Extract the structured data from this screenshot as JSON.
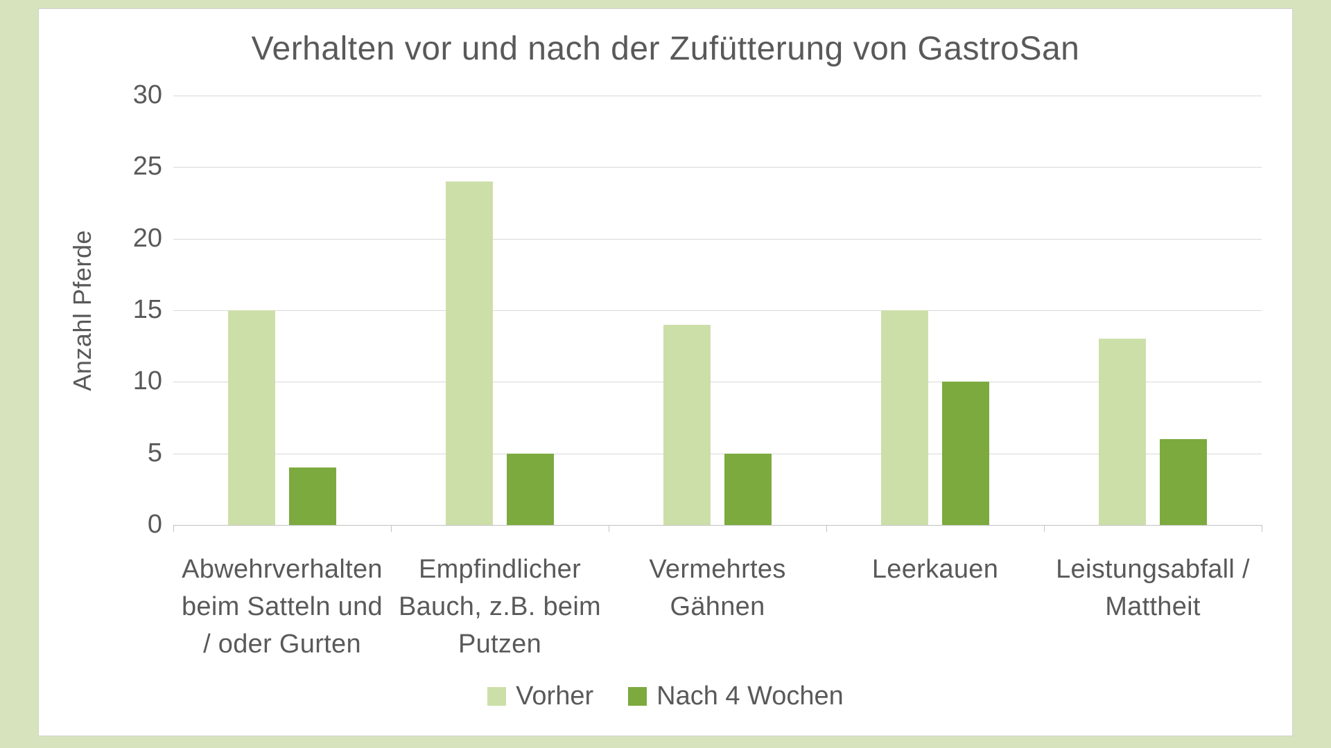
{
  "colors": {
    "page_background": "#d7e3bd",
    "panel_background": "#ffffff",
    "panel_border": "#d2d2d2",
    "gridline": "#d9d9d9",
    "axis_line": "#c2c2c2",
    "text": "#595959",
    "series_vorher": "#cddfa9",
    "series_nach_4_wochen": "#7caa3e"
  },
  "chart_data": {
    "type": "bar",
    "title": "Verhalten vor und nach der Zufütterung von GastroSan",
    "xlabel": "",
    "ylabel": "Anzahl Pferde",
    "ylim": [
      0,
      30
    ],
    "yticks": [
      0,
      5,
      10,
      15,
      20,
      25,
      30
    ],
    "grid": true,
    "legend_position": "bottom",
    "categories": [
      "Abwehrverhalten beim Satteln und / oder Gurten",
      "Empfindlicher Bauch, z.B. beim Putzen",
      "Vermehrtes Gähnen",
      "Leerkauen",
      "Leistungsabfall / Mattheit"
    ],
    "category_lines": [
      [
        "Abwehrverhalten",
        "beim Satteln und",
        "/ oder Gurten"
      ],
      [
        "Empfindlicher",
        "Bauch, z.B. beim",
        "Putzen"
      ],
      [
        "Vermehrtes",
        "Gähnen"
      ],
      [
        "Leerkauen"
      ],
      [
        "Leistungsabfall /",
        "Mattheit"
      ]
    ],
    "series": [
      {
        "name": "Vorher",
        "color": "#cddfa9",
        "values": [
          15,
          24,
          14,
          15,
          13
        ]
      },
      {
        "name": "Nach 4 Wochen",
        "color": "#7caa3e",
        "values": [
          4,
          5,
          5,
          10,
          6
        ]
      }
    ]
  }
}
